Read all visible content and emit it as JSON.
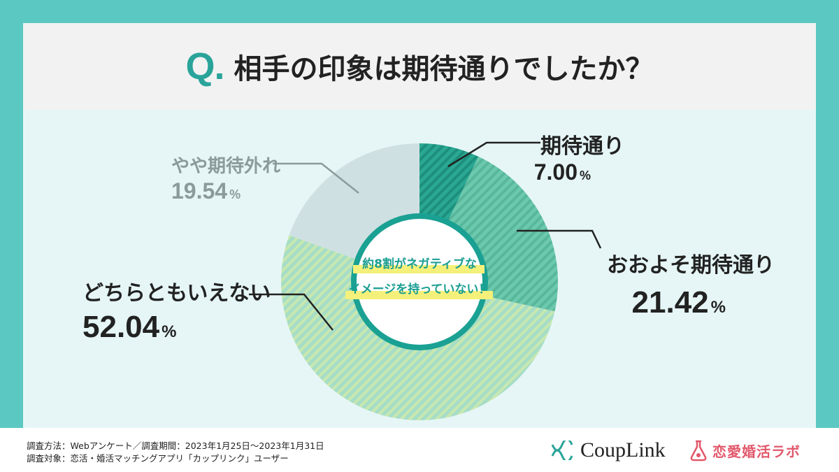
{
  "title": {
    "q": "Q.",
    "text": "相手の印象は期待通りでしたか？"
  },
  "center_text": {
    "line1": "約8割がネガティブな",
    "line2": "イメージを持っていない！"
  },
  "chart_data": {
    "type": "pie",
    "unit": "%",
    "slices": [
      {
        "label": "期待通り",
        "value": 7.0,
        "value_text": "7.00",
        "color": "#2aa893",
        "pattern": "#1d8f7d"
      },
      {
        "label": "おおよそ期待通り",
        "value": 21.42,
        "value_text": "21.42",
        "color": "#6cc9ad",
        "pattern": "#58b79b"
      },
      {
        "label": "どちらともいえない",
        "value": 52.04,
        "value_text": "52.04",
        "color": "#a6ddc6",
        "pattern": "#c8e8b0"
      },
      {
        "label": "やや期待外れ",
        "value": 19.54,
        "value_text": "19.54",
        "color": "#cfe0e2",
        "pattern": "#cfe0e2"
      }
    ]
  },
  "footer": {
    "note1": "調査方法：Webアンケート／調査期間：2023年1月25日〜2023年1月31日",
    "note2": "調査対象：恋活・婚活マッチングアプリ「カップリンク」ユーザー",
    "logo1": "CoupLink",
    "logo2": "恋愛婚活ラボ"
  },
  "colors": {
    "accent": "#2aa49a",
    "frame": "#5cc8c2",
    "logo_pink": "#e2586b"
  }
}
